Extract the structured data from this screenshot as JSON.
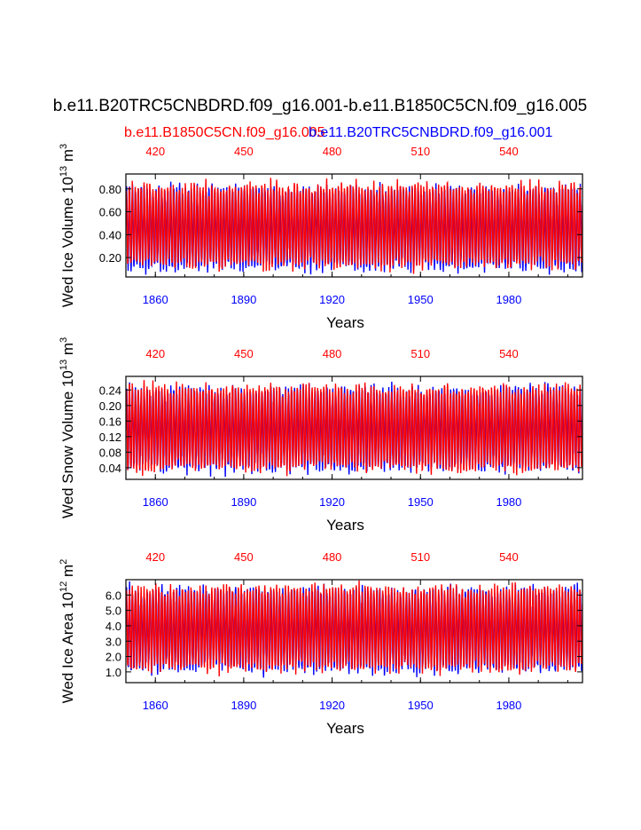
{
  "figure": {
    "title": "b.e11.B20TRC5CNBDRD.f09_g16.001-b.e11.B1850C5CN.f09_g16.005",
    "legend_red": "b.e11.B1850C5CN.f09_g16.005",
    "legend_blue": "b.e11.B20TRC5CNBDRD.f09_g16.001"
  },
  "colors": {
    "series_blue": "#0000ff",
    "series_red": "#ff0000",
    "axis": "#000000"
  },
  "chart_data": [
    {
      "type": "line",
      "ylabel_main": "Wed Ice Volume 10",
      "ylabel_exp": "13",
      "ylabel_unit": " m",
      "ylabel_unit_exp": "3",
      "xlabel": "Years",
      "xlim_bottom": [
        1850,
        2005
      ],
      "xlim_top": [
        410,
        565
      ],
      "ylim": [
        0.03,
        0.93
      ],
      "yticks": [
        0.2,
        0.4,
        0.6,
        0.8
      ],
      "ytick_labels": [
        "0.20",
        "0.40",
        "0.60",
        "0.80"
      ],
      "xticks_bottom": [
        1860,
        1890,
        1920,
        1950,
        1980
      ],
      "xtick_labels_bottom": [
        "1860",
        "1890",
        "1920",
        "1950",
        "1980"
      ],
      "xticks_top": [
        420,
        450,
        480,
        510,
        540
      ],
      "xtick_labels_top": [
        "420",
        "450",
        "480",
        "510",
        "540"
      ],
      "series": [
        {
          "color": "blue",
          "axis": "bottom",
          "seasonal_min": 0.12,
          "seasonal_max": 0.8
        },
        {
          "color": "red",
          "axis": "top",
          "seasonal_min": 0.14,
          "seasonal_max": 0.82
        }
      ]
    },
    {
      "type": "line",
      "ylabel_main": "Wed Snow Volume 10",
      "ylabel_exp": "13",
      "ylabel_unit": " m",
      "ylabel_unit_exp": "3",
      "xlabel": "Years",
      "xlim_bottom": [
        1850,
        2005
      ],
      "xlim_top": [
        410,
        565
      ],
      "ylim": [
        0.01,
        0.275
      ],
      "yticks": [
        0.04,
        0.08,
        0.12,
        0.16,
        0.2,
        0.24
      ],
      "ytick_labels": [
        "0.04",
        "0.08",
        "0.12",
        "0.16",
        "0.20",
        "0.24"
      ],
      "xticks_bottom": [
        1860,
        1890,
        1920,
        1950,
        1980
      ],
      "xtick_labels_bottom": [
        "1860",
        "1890",
        "1920",
        "1950",
        "1980"
      ],
      "xticks_top": [
        420,
        450,
        480,
        510,
        540
      ],
      "xtick_labels_top": [
        "420",
        "450",
        "480",
        "510",
        "540"
      ],
      "series": [
        {
          "color": "blue",
          "axis": "bottom",
          "seasonal_min": 0.04,
          "seasonal_max": 0.24
        },
        {
          "color": "red",
          "axis": "top",
          "seasonal_min": 0.04,
          "seasonal_max": 0.245
        }
      ]
    },
    {
      "type": "line",
      "ylabel_main": "Wed Ice Area 10",
      "ylabel_exp": "12",
      "ylabel_unit": " m",
      "ylabel_unit_exp": "2",
      "xlabel": "Years",
      "xlim_bottom": [
        1850,
        2005
      ],
      "xlim_top": [
        410,
        565
      ],
      "ylim": [
        0.3,
        7.0
      ],
      "yticks": [
        1,
        2,
        3,
        4,
        5,
        6
      ],
      "ytick_labels": [
        "1.0",
        "2.0",
        "3.0",
        "4.0",
        "5.0",
        "6.0"
      ],
      "xticks_bottom": [
        1860,
        1890,
        1920,
        1950,
        1980
      ],
      "xtick_labels_bottom": [
        "1860",
        "1890",
        "1920",
        "1950",
        "1980"
      ],
      "xticks_top": [
        420,
        450,
        480,
        510,
        540
      ],
      "xtick_labels_top": [
        "420",
        "450",
        "480",
        "510",
        "540"
      ],
      "series": [
        {
          "color": "blue",
          "axis": "bottom",
          "seasonal_min": 1.2,
          "seasonal_max": 6.3
        },
        {
          "color": "red",
          "axis": "top",
          "seasonal_min": 1.3,
          "seasonal_max": 6.4
        }
      ]
    }
  ]
}
